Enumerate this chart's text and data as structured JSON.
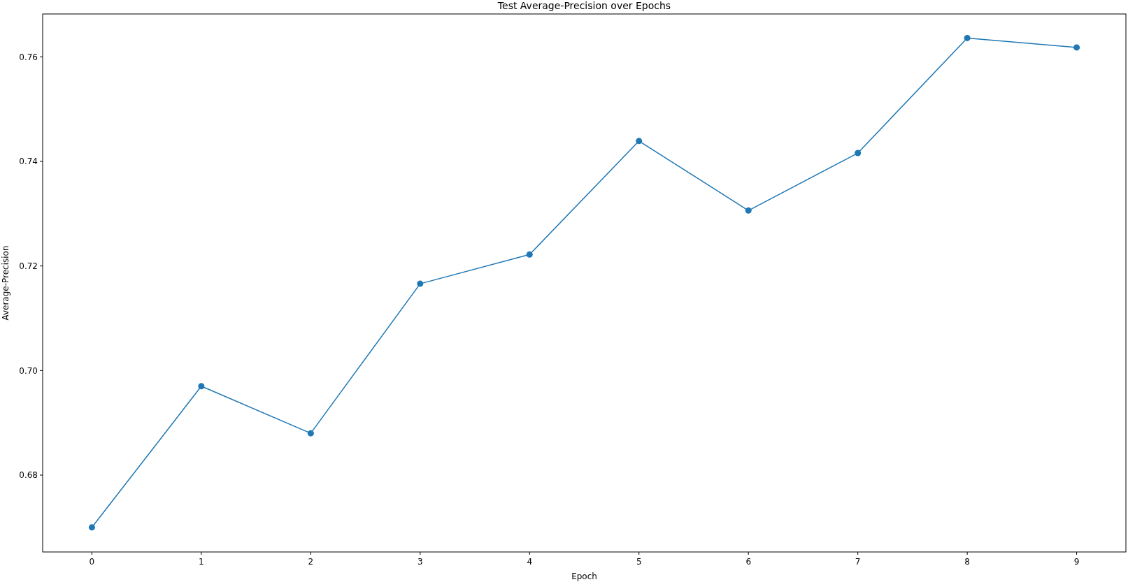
{
  "chart_data": {
    "type": "line",
    "title": "Test Average-Precision over Epochs",
    "xlabel": "Epoch",
    "ylabel": "Average-Precision",
    "x": [
      0,
      1,
      2,
      3,
      4,
      5,
      6,
      7,
      8,
      9
    ],
    "series": [
      {
        "color": "#1f77b4",
        "values": [
          0.67,
          0.697,
          0.688,
          0.7166,
          0.7222,
          0.7439,
          0.7306,
          0.7416,
          0.7636,
          0.7618
        ]
      }
    ],
    "xlim": [
      -0.45,
      9.45
    ],
    "xticks": [
      0,
      1,
      2,
      3,
      4,
      5,
      6,
      7,
      8,
      9
    ],
    "ylim": [
      0.6653,
      0.7682
    ],
    "yticks": [
      {
        "value": 0.68,
        "label": "0.68"
      },
      {
        "value": 0.7,
        "label": "0.70"
      },
      {
        "value": 0.72,
        "label": "0.72"
      },
      {
        "value": 0.74,
        "label": "0.74"
      },
      {
        "value": 0.76,
        "label": "0.76"
      }
    ],
    "grid": false,
    "marker": "circle",
    "line_style": "solid"
  }
}
